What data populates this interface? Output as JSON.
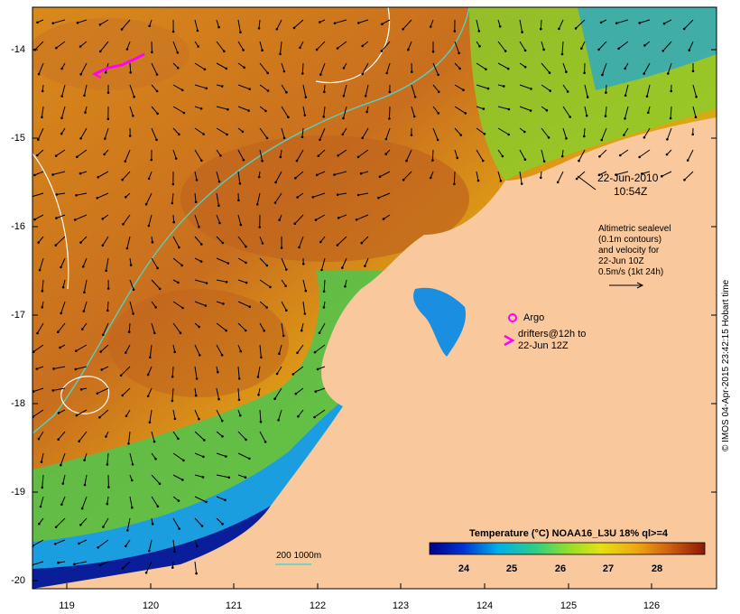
{
  "map": {
    "date_line1": "22-Jun-2010",
    "date_line2": "10:54Z",
    "altimetry_lines": [
      "Altimetric sealevel",
      "(0.1m contours)",
      "and velocity for",
      "22-Jun 10Z",
      "0.5m/s (1kt 24h)"
    ],
    "argo_label": "Argo",
    "drifters_lines": [
      "drifters@12h to",
      "22-Jun 12Z"
    ],
    "depth_label": "200  1000m",
    "credit": "© IMOS 04-Apr-2015 23:42:15 Hobart time",
    "colorbar": {
      "title": "Temperature (°C) NOAA16_L3U 18% ql>=4",
      "ticks": [
        "24",
        "25",
        "26",
        "27",
        "28"
      ],
      "range": [
        23.2,
        28.9
      ]
    },
    "lat_ticks": [
      "-14",
      "-15",
      "-16",
      "-17",
      "-18",
      "-19",
      "-20"
    ],
    "lon_ticks": [
      "119",
      "120",
      "121",
      "122",
      "123",
      "124",
      "125",
      "126"
    ],
    "colors": {
      "land": "#f9c89c",
      "isobath_200": "#4fd6c8",
      "isobath_1000": "#ffffff",
      "marker": "#ff00ff"
    }
  }
}
